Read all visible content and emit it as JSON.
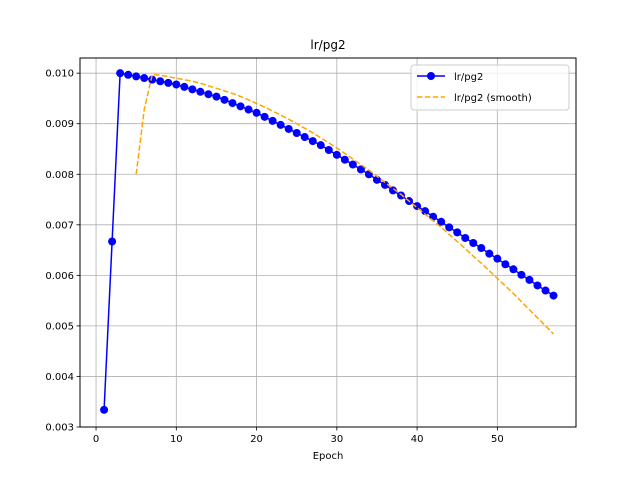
{
  "chart_data": {
    "type": "line",
    "title": "lr/pg2",
    "xlabel": "Epoch",
    "ylabel": "",
    "xlim": [
      -2,
      59.8
    ],
    "ylim": [
      0.003,
      0.0103
    ],
    "xticks": [
      0,
      10,
      20,
      30,
      40,
      50
    ],
    "yticks": [
      "0.003",
      "0.004",
      "0.005",
      "0.006",
      "0.007",
      "0.008",
      "0.009",
      "0.010"
    ],
    "grid": true,
    "legend_position": "upper right",
    "series": [
      {
        "name": "lr/pg2",
        "color": "#0000ff",
        "style": "solid-with-circle-markers",
        "x": [
          1,
          2,
          3,
          4,
          5,
          6,
          7,
          8,
          9,
          10,
          11,
          12,
          13,
          14,
          15,
          16,
          17,
          18,
          19,
          20,
          21,
          22,
          23,
          24,
          25,
          26,
          27,
          28,
          29,
          30,
          31,
          32,
          33,
          34,
          35,
          36,
          37,
          38,
          39,
          40,
          41,
          42,
          43,
          44,
          45,
          46,
          47,
          48,
          49,
          50,
          51,
          52,
          53,
          54,
          55,
          56,
          57
        ],
        "y": [
          0.00334,
          0.00667,
          0.01,
          0.009968,
          0.009936,
          0.009904,
          0.009872,
          0.00984,
          0.009808,
          0.009776,
          0.009728,
          0.00968,
          0.009632,
          0.009584,
          0.009536,
          0.009472,
          0.009408,
          0.009344,
          0.00928,
          0.009216,
          0.009136,
          0.009056,
          0.008976,
          0.008896,
          0.008816,
          0.008736,
          0.008656,
          0.008576,
          0.00848,
          0.008384,
          0.008288,
          0.008192,
          0.008096,
          0.008,
          0.00789,
          0.00779,
          0.00768,
          0.00758,
          0.00747,
          0.00737,
          0.00727,
          0.00716,
          0.00706,
          0.00695,
          0.00685,
          0.00674,
          0.00664,
          0.00654,
          0.00643,
          0.00633,
          0.00622,
          0.00612,
          0.00601,
          0.00591,
          0.0058,
          0.0057,
          0.0056
        ]
      },
      {
        "name": "lr/pg2 (smooth)",
        "color": "#ffa500",
        "style": "dashed",
        "x": [
          5,
          6,
          7,
          8,
          9,
          10,
          11,
          12,
          13,
          14,
          15,
          16,
          17,
          18,
          19,
          20,
          21,
          22,
          23,
          24,
          25,
          26,
          27,
          28,
          29,
          30,
          31,
          32,
          33,
          34,
          35,
          36,
          37,
          38,
          39,
          40,
          41,
          42,
          43,
          44,
          45,
          46,
          47,
          48,
          49,
          50,
          51,
          52,
          53,
          54,
          55,
          56,
          57
        ],
        "y": [
          0.008,
          0.00928,
          0.00997,
          0.00996,
          0.00993,
          0.0099,
          0.00987,
          0.00984,
          0.0098,
          0.00975,
          0.0097,
          0.00965,
          0.0096,
          0.00954,
          0.00947,
          0.0094,
          0.00933,
          0.00925,
          0.00917,
          0.00909,
          0.009,
          0.00891,
          0.00882,
          0.00872,
          0.00862,
          0.00852,
          0.00841,
          0.0083,
          0.00819,
          0.00808,
          0.00796,
          0.00784,
          0.00772,
          0.0076,
          0.00747,
          0.00734,
          0.00721,
          0.00708,
          0.00695,
          0.00681,
          0.00667,
          0.00653,
          0.00638,
          0.00624,
          0.00609,
          0.00594,
          0.00579,
          0.00564,
          0.00548,
          0.00532,
          0.00516,
          0.005,
          0.00484
        ]
      }
    ]
  }
}
